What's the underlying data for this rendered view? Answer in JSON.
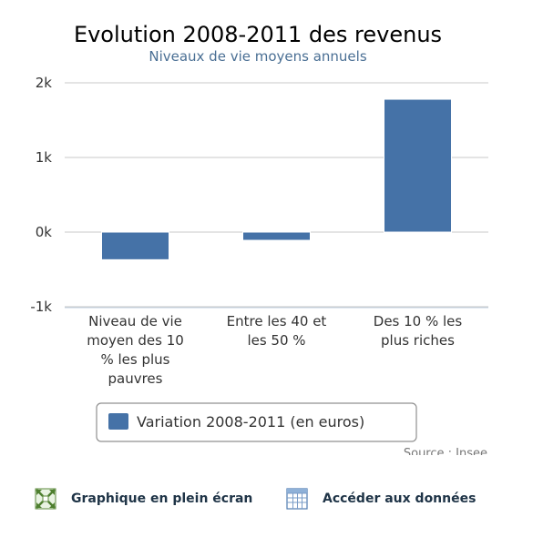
{
  "chart_data": {
    "type": "bar",
    "title": "Evolution 2008-2011 des revenus",
    "subtitle": "Niveaux de vie moyens annuels",
    "categories": [
      [
        "Niveau de vie",
        "moyen des 10",
        "% les plus",
        "pauvres"
      ],
      [
        "Entre les 40 et",
        "les 50 %"
      ],
      [
        "Des 10 % les",
        "plus riches"
      ]
    ],
    "series": [
      {
        "name": "Variation 2008-2011 (en euros)",
        "values": [
          -370,
          -110,
          1780
        ],
        "color": "#4572a7"
      }
    ],
    "yticks": [
      {
        "value": 2000,
        "label": "2k"
      },
      {
        "value": 1000,
        "label": "1k"
      },
      {
        "value": 0,
        "label": "0k"
      },
      {
        "value": -1000,
        "label": "-1k"
      }
    ],
    "ylim": [
      -1000,
      2000
    ],
    "grid": true,
    "legend_position": "bottom-center",
    "credit": "Source : Insee"
  },
  "links": {
    "fullscreen_label": "Graphique en plein écran",
    "fullscreen_icon": "fullscreen-icon",
    "data_label": "Accéder aux données",
    "data_icon": "table-icon"
  }
}
